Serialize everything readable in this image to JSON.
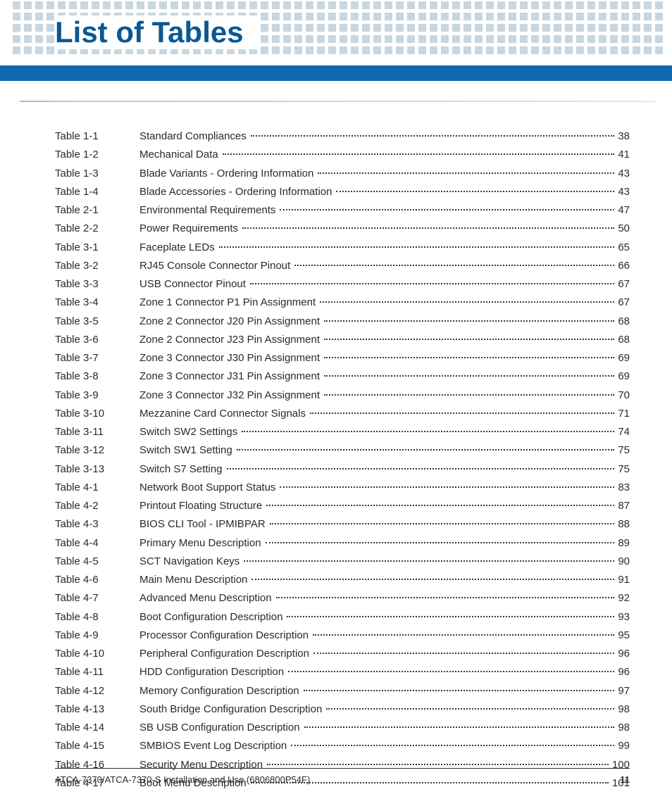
{
  "header": {
    "title": "List of Tables",
    "title_color": "#0a5895",
    "blue_bar_color": "#0d6ab0",
    "dot_color": "#c9d6df",
    "dot_rows": 5,
    "dots_per_row": 58
  },
  "toc": {
    "entries": [
      {
        "id": "Table 1-1",
        "title": "Standard Compliances",
        "page": "38"
      },
      {
        "id": "Table 1-2",
        "title": "Mechanical Data",
        "page": "41"
      },
      {
        "id": "Table 1-3",
        "title": "Blade Variants - Ordering Information",
        "page": "43"
      },
      {
        "id": "Table 1-4",
        "title": "Blade Accessories - Ordering Information",
        "page": "43"
      },
      {
        "id": "Table 2-1",
        "title": "Environmental Requirements",
        "page": "47"
      },
      {
        "id": "Table 2-2",
        "title": "Power Requirements",
        "page": "50"
      },
      {
        "id": "Table 3-1",
        "title": "Faceplate LEDs",
        "page": "65"
      },
      {
        "id": "Table 3-2",
        "title": "RJ45 Console Connector Pinout",
        "page": "66"
      },
      {
        "id": "Table 3-3",
        "title": "USB Connector Pinout",
        "page": "67"
      },
      {
        "id": "Table 3-4",
        "title": "Zone 1 Connector P1 Pin Assignment",
        "page": "67"
      },
      {
        "id": "Table 3-5",
        "title": "Zone 2 Connector J20 Pin Assignment",
        "page": "68"
      },
      {
        "id": "Table 3-6",
        "title": "Zone 2 Connector J23 Pin Assignment",
        "page": "68"
      },
      {
        "id": "Table 3-7",
        "title": "Zone 3 Connector J30 Pin Assignment",
        "page": "69"
      },
      {
        "id": "Table 3-8",
        "title": "Zone 3 Connector J31 Pin Assignment",
        "page": "69"
      },
      {
        "id": "Table 3-9",
        "title": "Zone 3 Connector J32 Pin Assignment",
        "page": "70"
      },
      {
        "id": "Table 3-10",
        "title": "Mezzanine Card Connector Signals",
        "page": "71"
      },
      {
        "id": "Table 3-11",
        "title": "Switch SW2 Settings",
        "page": "74"
      },
      {
        "id": "Table 3-12",
        "title": "Switch SW1 Setting",
        "page": "75"
      },
      {
        "id": "Table 3-13",
        "title": "Switch S7 Setting",
        "page": "75"
      },
      {
        "id": "Table 4-1",
        "title": "Network Boot Support Status",
        "page": "83"
      },
      {
        "id": "Table 4-2",
        "title": "Printout Floating Structure",
        "page": "87"
      },
      {
        "id": "Table 4-3",
        "title": "BIOS CLI Tool - IPMIBPAR",
        "page": "88"
      },
      {
        "id": "Table 4-4",
        "title": "Primary Menu Description",
        "page": "89"
      },
      {
        "id": "Table 4-5",
        "title": "SCT Navigation Keys",
        "page": "90"
      },
      {
        "id": "Table 4-6",
        "title": "Main Menu Description",
        "page": "91"
      },
      {
        "id": "Table 4-7",
        "title": "Advanced Menu Description",
        "page": "92"
      },
      {
        "id": "Table 4-8",
        "title": "Boot Configuration Description",
        "page": "93"
      },
      {
        "id": "Table 4-9",
        "title": "Processor Configuration Description",
        "page": "95"
      },
      {
        "id": "Table 4-10",
        "title": "Peripheral Configuration Description",
        "page": "96"
      },
      {
        "id": "Table 4-11",
        "title": "HDD Configuration Description",
        "page": "96"
      },
      {
        "id": "Table 4-12",
        "title": "Memory Configuration Description",
        "page": "97"
      },
      {
        "id": "Table 4-13",
        "title": "South Bridge Configuration Description",
        "page": "98"
      },
      {
        "id": "Table 4-14",
        "title": "SB USB Configuration Description",
        "page": "98"
      },
      {
        "id": "Table 4-15",
        "title": "SMBIOS Event Log Description",
        "page": "99"
      },
      {
        "id": "Table 4-16",
        "title": "Security Menu Description",
        "page": "100"
      },
      {
        "id": "Table 4-17",
        "title": "Boot Menu Description",
        "page": "101"
      }
    ]
  },
  "footer": {
    "doc_title": "ATCA-7370/ATCA-7370-S Installation and Use (6806800P54F)",
    "page_number": "11"
  }
}
